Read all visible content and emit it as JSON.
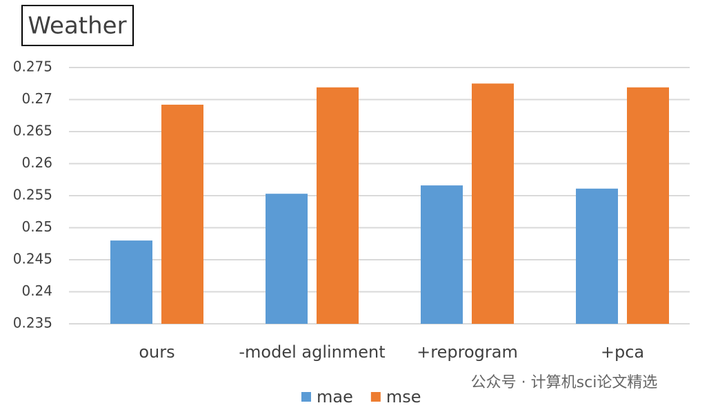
{
  "chart_data": {
    "type": "bar",
    "title": "Weather",
    "categories": [
      "ours",
      "-model aglinment",
      "+reprogram",
      "+pca"
    ],
    "series": [
      {
        "name": "mae",
        "color": "#5b9bd5",
        "values": [
          0.248,
          0.2553,
          0.2566,
          0.2561
        ]
      },
      {
        "name": "mse",
        "color": "#ed7d31",
        "values": [
          0.2692,
          0.2719,
          0.2725,
          0.2719
        ]
      }
    ],
    "ylim": [
      0.235,
      0.275
    ],
    "yticks": [
      0.235,
      0.24,
      0.245,
      0.25,
      0.255,
      0.26,
      0.265,
      0.27,
      0.275
    ],
    "grid": true,
    "legend": "bottom",
    "watermark": "公众号 · 计算机sci论文精选"
  }
}
